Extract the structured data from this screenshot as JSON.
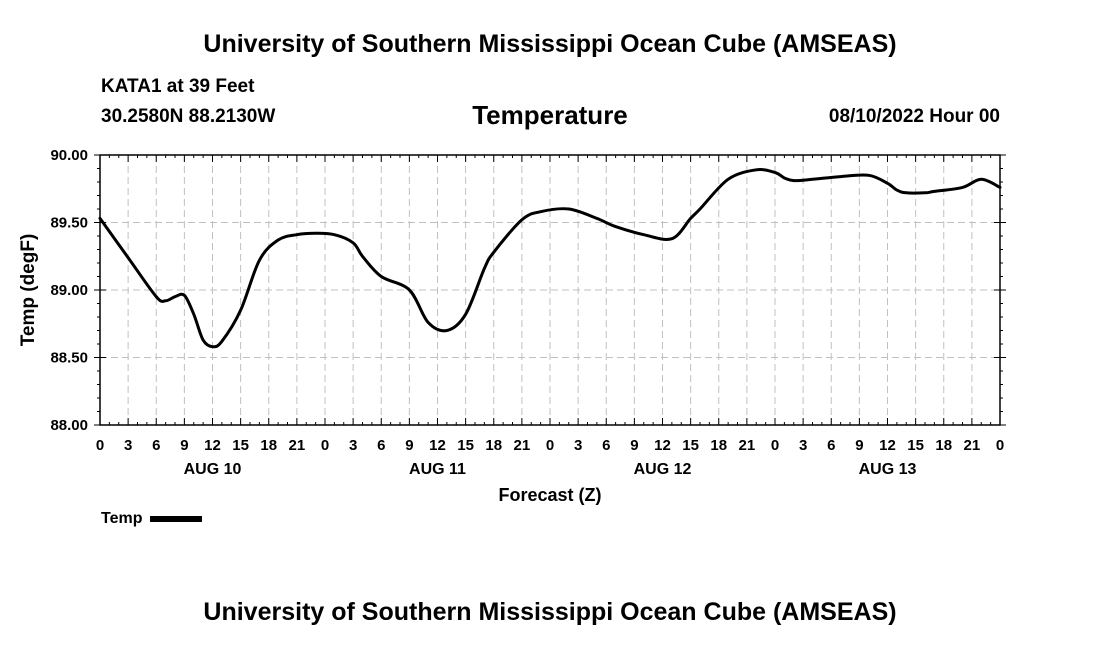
{
  "header": {
    "title": "University of Southern Mississippi Ocean Cube (AMSEAS)",
    "station": "KATA1 at 39 Feet",
    "coords": "30.2580N  88.2130W",
    "parameter": "Temperature",
    "timestamp": "08/10/2022 Hour 00"
  },
  "footer": {
    "title": "University of Southern Mississippi Ocean Cube (AMSEAS)"
  },
  "legend": {
    "label": "Temp"
  },
  "colors": {
    "line": "#000000",
    "grid": "#c0c0c0",
    "background": "#ffffff"
  },
  "chart_data": {
    "type": "line",
    "title": "Temperature",
    "xlabel": "Forecast (Z)",
    "ylabel": "Temp (degF)",
    "ylim": [
      88.0,
      90.0
    ],
    "yticks": [
      "88.00",
      "88.50",
      "89.00",
      "89.50",
      "90.00"
    ],
    "xlim_hours": [
      0,
      96
    ],
    "xtick_step_hours": 3,
    "xtick_labels": [
      "0",
      "3",
      "6",
      "9",
      "12",
      "15",
      "18",
      "21",
      "0",
      "3",
      "6",
      "9",
      "12",
      "15",
      "18",
      "21",
      "0",
      "3",
      "6",
      "9",
      "12",
      "15",
      "18",
      "21",
      "0",
      "3",
      "6",
      "9",
      "12",
      "15",
      "18",
      "21",
      "0"
    ],
    "day_labels": [
      {
        "label": "AUG 10",
        "hour": 12
      },
      {
        "label": "AUG 11",
        "hour": 36
      },
      {
        "label": "AUG 12",
        "hour": 60
      },
      {
        "label": "AUG 13",
        "hour": 84
      }
    ],
    "grid": true,
    "legend_position": "bottom-left",
    "series": [
      {
        "name": "Temp",
        "x_hours": [
          0,
          3,
          6,
          7,
          8,
          9,
          10,
          11,
          12,
          13,
          15,
          17,
          19,
          21,
          23,
          25,
          27,
          28,
          30,
          33,
          35,
          37,
          39,
          41,
          42,
          45,
          47,
          50,
          53,
          55,
          58,
          61,
          63,
          64,
          67,
          70,
          72,
          73,
          74,
          76,
          79,
          82,
          84,
          85,
          86,
          88,
          89,
          92,
          94,
          96
        ],
        "values": [
          89.53,
          89.24,
          88.95,
          88.92,
          88.95,
          88.96,
          88.82,
          88.63,
          88.58,
          88.62,
          88.85,
          89.22,
          89.37,
          89.41,
          89.42,
          89.41,
          89.35,
          89.25,
          89.1,
          89.0,
          88.76,
          88.7,
          88.82,
          89.16,
          89.28,
          89.52,
          89.58,
          89.6,
          89.53,
          89.47,
          89.41,
          89.38,
          89.53,
          89.6,
          89.82,
          89.89,
          89.87,
          89.83,
          89.81,
          89.82,
          89.84,
          89.85,
          89.79,
          89.74,
          89.72,
          89.72,
          89.73,
          89.76,
          89.82,
          89.76
        ]
      }
    ]
  }
}
